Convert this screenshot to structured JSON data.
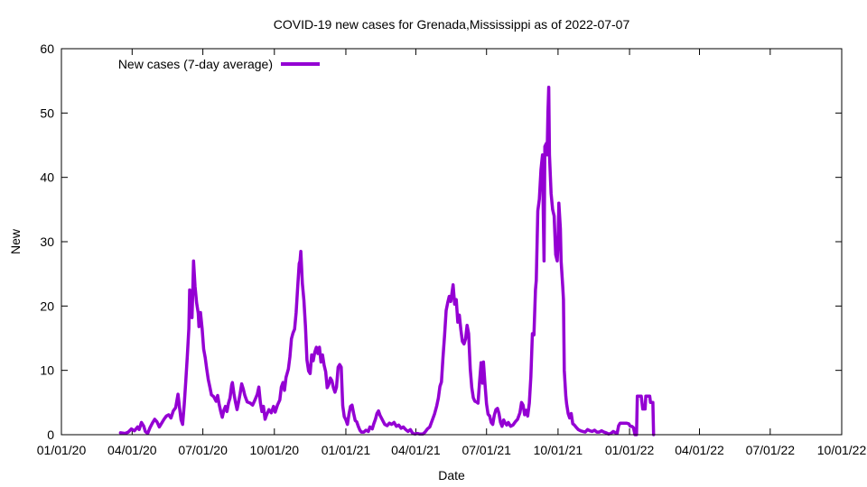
{
  "chart_data": {
    "type": "line",
    "title": "COVID-19 new cases for Grenada,Mississippi as of 2022-07-07",
    "xlabel": "Date",
    "ylabel": "New",
    "ylim": [
      0,
      60
    ],
    "yticks": [
      0,
      10,
      20,
      30,
      40,
      50,
      60
    ],
    "xlim": [
      0,
      1004
    ],
    "xticks": [
      {
        "label": "01/01/20",
        "day": 0
      },
      {
        "label": "04/01/20",
        "day": 91
      },
      {
        "label": "07/01/20",
        "day": 182
      },
      {
        "label": "10/01/20",
        "day": 274
      },
      {
        "label": "01/01/21",
        "day": 366
      },
      {
        "label": "04/01/21",
        "day": 456
      },
      {
        "label": "07/01/21",
        "day": 547
      },
      {
        "label": "10/01/21",
        "day": 639
      },
      {
        "label": "01/01/22",
        "day": 731
      },
      {
        "label": "04/01/22",
        "day": 821
      },
      {
        "label": "07/01/22",
        "day": 912
      },
      {
        "label": "10/01/22",
        "day": 1004
      }
    ],
    "x_unit": "days since 2020-01-01",
    "legend": "top-left",
    "color": "#9400d3",
    "series": [
      {
        "name": "New cases (7-day average)",
        "points": [
          [
            76,
            0.3
          ],
          [
            82,
            0.2
          ],
          [
            86,
            0.4
          ],
          [
            90,
            0.9
          ],
          [
            94,
            0.6
          ],
          [
            98,
            1.2
          ],
          [
            100,
            0.8
          ],
          [
            103,
            1.9
          ],
          [
            106,
            1.3
          ],
          [
            108,
            0.5
          ],
          [
            111,
            0.2
          ],
          [
            114,
            1.1
          ],
          [
            117,
            1.8
          ],
          [
            120,
            2.4
          ],
          [
            123,
            2.0
          ],
          [
            126,
            1.2
          ],
          [
            129,
            1.8
          ],
          [
            132,
            2.4
          ],
          [
            135,
            2.9
          ],
          [
            138,
            3.1
          ],
          [
            141,
            2.6
          ],
          [
            144,
            3.7
          ],
          [
            147,
            4.2
          ],
          [
            150,
            6.3
          ],
          [
            152,
            4.2
          ],
          [
            154,
            2.3
          ],
          [
            156,
            1.6
          ],
          [
            158,
            4.7
          ],
          [
            160,
            8.3
          ],
          [
            162,
            12.2
          ],
          [
            164,
            16.5
          ],
          [
            165,
            22.5
          ],
          [
            166,
            21.0
          ],
          [
            168,
            18.2
          ],
          [
            169,
            22.0
          ],
          [
            170,
            27.0
          ],
          [
            172,
            23.0
          ],
          [
            174,
            20.5
          ],
          [
            176,
            18.9
          ],
          [
            177,
            16.8
          ],
          [
            179,
            19.0
          ],
          [
            181,
            16.5
          ],
          [
            183,
            13.3
          ],
          [
            185,
            12.0
          ],
          [
            187,
            10.2
          ],
          [
            189,
            8.6
          ],
          [
            191,
            7.4
          ],
          [
            193,
            6.2
          ],
          [
            196,
            5.9
          ],
          [
            199,
            5.2
          ],
          [
            201,
            6.1
          ],
          [
            203,
            4.7
          ],
          [
            205,
            3.6
          ],
          [
            207,
            2.7
          ],
          [
            209,
            3.8
          ],
          [
            211,
            4.4
          ],
          [
            213,
            3.6
          ],
          [
            215,
            4.9
          ],
          [
            217,
            5.7
          ],
          [
            219,
            7.7
          ],
          [
            220,
            8.1
          ],
          [
            222,
            6.4
          ],
          [
            224,
            5.0
          ],
          [
            226,
            3.9
          ],
          [
            228,
            5.1
          ],
          [
            230,
            6.4
          ],
          [
            232,
            7.9
          ],
          [
            234,
            7.1
          ],
          [
            236,
            6.1
          ],
          [
            239,
            5.1
          ],
          [
            243,
            4.9
          ],
          [
            246,
            4.6
          ],
          [
            249,
            5.4
          ],
          [
            252,
            6.3
          ],
          [
            254,
            7.4
          ],
          [
            256,
            5.0
          ],
          [
            258,
            3.6
          ],
          [
            260,
            4.4
          ],
          [
            262,
            2.4
          ],
          [
            264,
            3.1
          ],
          [
            267,
            3.9
          ],
          [
            270,
            3.4
          ],
          [
            273,
            4.4
          ],
          [
            275,
            3.5
          ],
          [
            278,
            4.6
          ],
          [
            281,
            5.4
          ],
          [
            283,
            7.4
          ],
          [
            285,
            8.1
          ],
          [
            287,
            6.9
          ],
          [
            289,
            8.9
          ],
          [
            292,
            10.2
          ],
          [
            294,
            12.1
          ],
          [
            296,
            14.9
          ],
          [
            298,
            15.8
          ],
          [
            300,
            16.4
          ],
          [
            302,
            19.0
          ],
          [
            304,
            22.9
          ],
          [
            306,
            26.6
          ],
          [
            307,
            27.0
          ],
          [
            308,
            28.5
          ],
          [
            310,
            23.5
          ],
          [
            312,
            20.9
          ],
          [
            314,
            16.9
          ],
          [
            316,
            11.6
          ],
          [
            318,
            9.9
          ],
          [
            320,
            9.5
          ],
          [
            322,
            12.4
          ],
          [
            324,
            11.5
          ],
          [
            326,
            12.8
          ],
          [
            328,
            13.6
          ],
          [
            330,
            12.6
          ],
          [
            332,
            13.6
          ],
          [
            334,
            11.3
          ],
          [
            336,
            12.4
          ],
          [
            338,
            10.8
          ],
          [
            340,
            9.8
          ],
          [
            342,
            7.3
          ],
          [
            344,
            7.8
          ],
          [
            346,
            8.8
          ],
          [
            348,
            8.4
          ],
          [
            350,
            7.3
          ],
          [
            352,
            6.6
          ],
          [
            354,
            7.4
          ],
          [
            356,
            10.5
          ],
          [
            358,
            10.9
          ],
          [
            360,
            10.5
          ],
          [
            362,
            4.5
          ],
          [
            364,
            2.8
          ],
          [
            366,
            2.3
          ],
          [
            368,
            1.6
          ],
          [
            370,
            3.2
          ],
          [
            372,
            4.4
          ],
          [
            374,
            4.6
          ],
          [
            376,
            3.3
          ],
          [
            378,
            2.2
          ],
          [
            380,
            2.0
          ],
          [
            382,
            1.3
          ],
          [
            384,
            0.7
          ],
          [
            386,
            0.4
          ],
          [
            389,
            0.4
          ],
          [
            392,
            0.7
          ],
          [
            395,
            0.5
          ],
          [
            397,
            1.2
          ],
          [
            400,
            0.9
          ],
          [
            402,
            1.7
          ],
          [
            404,
            2.4
          ],
          [
            406,
            3.3
          ],
          [
            408,
            3.7
          ],
          [
            410,
            3.0
          ],
          [
            413,
            2.3
          ],
          [
            416,
            1.6
          ],
          [
            419,
            1.4
          ],
          [
            422,
            1.8
          ],
          [
            425,
            1.6
          ],
          [
            428,
            1.9
          ],
          [
            431,
            1.3
          ],
          [
            434,
            1.5
          ],
          [
            437,
            1.0
          ],
          [
            440,
            1.2
          ],
          [
            443,
            0.8
          ],
          [
            446,
            0.5
          ],
          [
            449,
            0.8
          ],
          [
            452,
            0.2
          ],
          [
            455,
            0.1
          ],
          [
            458,
            0.2
          ],
          [
            461,
            0.1
          ],
          [
            465,
            0.1
          ],
          [
            468,
            0.4
          ],
          [
            471,
            0.9
          ],
          [
            474,
            1.2
          ],
          [
            477,
            2.2
          ],
          [
            480,
            3.2
          ],
          [
            483,
            4.5
          ],
          [
            485,
            5.7
          ],
          [
            487,
            7.5
          ],
          [
            489,
            8.2
          ],
          [
            491,
            12.0
          ],
          [
            493,
            15.5
          ],
          [
            495,
            19.3
          ],
          [
            497,
            20.5
          ],
          [
            499,
            21.5
          ],
          [
            501,
            20.7
          ],
          [
            503,
            22.5
          ],
          [
            504,
            23.3
          ],
          [
            506,
            20.3
          ],
          [
            508,
            21.0
          ],
          [
            510,
            17.5
          ],
          [
            512,
            18.6
          ],
          [
            514,
            16.3
          ],
          [
            516,
            14.5
          ],
          [
            518,
            14.1
          ],
          [
            520,
            14.9
          ],
          [
            522,
            17.0
          ],
          [
            524,
            15.7
          ],
          [
            526,
            10.2
          ],
          [
            528,
            7.3
          ],
          [
            530,
            5.7
          ],
          [
            532,
            5.2
          ],
          [
            534,
            5.1
          ],
          [
            536,
            4.9
          ],
          [
            538,
            8.2
          ],
          [
            540,
            11.2
          ],
          [
            541,
            11.0
          ],
          [
            542,
            8.0
          ],
          [
            543,
            11.3
          ],
          [
            545,
            7.9
          ],
          [
            547,
            4.8
          ],
          [
            549,
            3.2
          ],
          [
            551,
            2.9
          ],
          [
            553,
            1.9
          ],
          [
            555,
            1.6
          ],
          [
            557,
            3.0
          ],
          [
            559,
            3.9
          ],
          [
            561,
            4.1
          ],
          [
            563,
            3.3
          ],
          [
            565,
            1.9
          ],
          [
            567,
            1.3
          ],
          [
            569,
            2.3
          ],
          [
            571,
            1.8
          ],
          [
            573,
            1.5
          ],
          [
            575,
            1.9
          ],
          [
            578,
            1.3
          ],
          [
            581,
            1.5
          ],
          [
            584,
            2.0
          ],
          [
            587,
            2.4
          ],
          [
            590,
            3.4
          ],
          [
            592,
            5.0
          ],
          [
            594,
            4.6
          ],
          [
            596,
            3.1
          ],
          [
            598,
            3.8
          ],
          [
            600,
            2.9
          ],
          [
            602,
            4.9
          ],
          [
            604,
            9.0
          ],
          [
            606,
            15.7
          ],
          [
            608,
            15.5
          ],
          [
            610,
            22.5
          ],
          [
            611,
            24.0
          ],
          [
            613,
            34.8
          ],
          [
            615,
            36.6
          ],
          [
            617,
            41.2
          ],
          [
            619,
            43.5
          ],
          [
            620,
            35.0
          ],
          [
            621,
            27.0
          ],
          [
            622,
            44.8
          ],
          [
            624,
            45.3
          ],
          [
            625,
            43.5
          ],
          [
            626,
            50.0
          ],
          [
            627,
            54.0
          ],
          [
            628,
            43.5
          ],
          [
            630,
            37.5
          ],
          [
            632,
            35.0
          ],
          [
            634,
            34.0
          ],
          [
            636,
            28.0
          ],
          [
            638,
            27.0
          ],
          [
            639,
            30.0
          ],
          [
            640,
            36.0
          ],
          [
            642,
            32.0
          ],
          [
            643,
            27.0
          ],
          [
            645,
            23.0
          ],
          [
            646,
            21.0
          ],
          [
            647,
            10.0
          ],
          [
            649,
            6.0
          ],
          [
            650,
            4.8
          ],
          [
            652,
            3.3
          ],
          [
            654,
            2.6
          ],
          [
            656,
            3.3
          ],
          [
            658,
            1.7
          ],
          [
            660,
            1.5
          ],
          [
            662,
            1.2
          ],
          [
            665,
            0.8
          ],
          [
            668,
            0.6
          ],
          [
            671,
            0.5
          ],
          [
            674,
            0.4
          ],
          [
            677,
            0.8
          ],
          [
            680,
            0.6
          ],
          [
            683,
            0.5
          ],
          [
            686,
            0.7
          ],
          [
            689,
            0.4
          ],
          [
            692,
            0.4
          ],
          [
            695,
            0.6
          ],
          [
            698,
            0.4
          ],
          [
            701,
            0.3
          ],
          [
            704,
            0.1
          ],
          [
            707,
            0.2
          ],
          [
            710,
            0.5
          ],
          [
            713,
            0.3
          ],
          [
            715,
            0.2
          ],
          [
            717,
            1.4
          ],
          [
            719,
            1.8
          ],
          [
            721,
            1.8
          ],
          [
            724,
            1.8
          ],
          [
            727,
            1.8
          ],
          [
            730,
            1.7
          ],
          [
            732,
            1.3
          ],
          [
            734,
            1.3
          ],
          [
            736,
            1.1
          ],
          [
            738,
            0.0
          ],
          [
            740,
            0.0
          ],
          [
            741,
            6.0
          ],
          [
            743,
            6.0
          ],
          [
            746,
            6.0
          ],
          [
            748,
            4.0
          ],
          [
            751,
            4.0
          ],
          [
            752,
            6.0
          ],
          [
            754,
            6.0
          ],
          [
            757,
            6.0
          ],
          [
            758,
            5.0
          ],
          [
            761,
            5.0
          ],
          [
            762,
            0.0
          ]
        ]
      }
    ]
  }
}
